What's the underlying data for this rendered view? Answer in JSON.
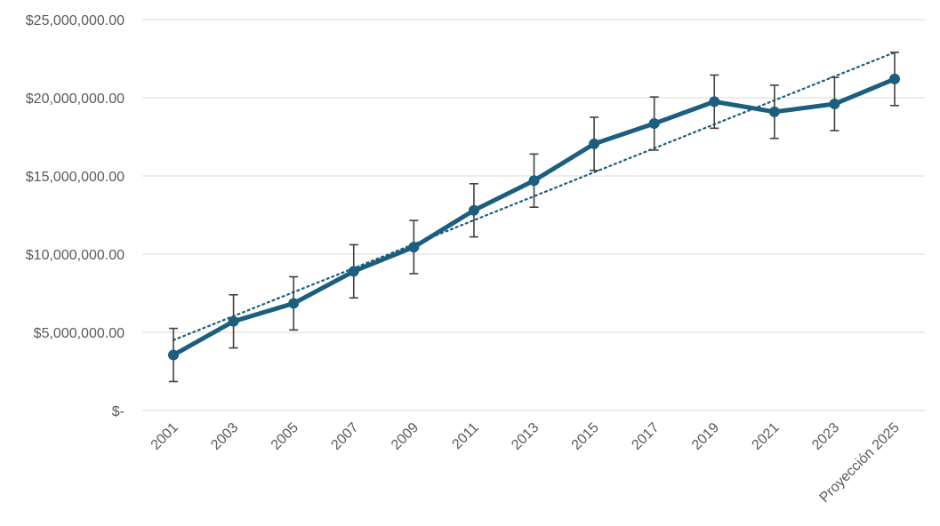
{
  "chart_data": {
    "type": "line",
    "title": "",
    "xlabel": "",
    "ylabel": "",
    "categories": [
      "2001",
      "2003",
      "2005",
      "2007",
      "2009",
      "2011",
      "2013",
      "2015",
      "2017",
      "2019",
      "2021",
      "2023",
      "Proyección 2025"
    ],
    "series": [
      {
        "values": [
          3550000,
          5700000,
          6850000,
          8900000,
          10450000,
          12800000,
          14700000,
          17050000,
          18350000,
          19750000,
          19100000,
          19600000,
          21200000
        ],
        "error": [
          1700000,
          1700000,
          1700000,
          1700000,
          1700000,
          1700000,
          1700000,
          1700000,
          1700000,
          1700000,
          1700000,
          1700000,
          1700000
        ],
        "color": "#1b5e7e"
      }
    ],
    "trendline": {
      "type": "linear",
      "start": 4500000,
      "end": 22900000,
      "color": "#1b5e7e",
      "style": "dotted"
    },
    "ylim": [
      0,
      25000000
    ],
    "yticks": [
      0,
      5000000,
      10000000,
      15000000,
      20000000,
      25000000
    ],
    "ytick_labels": [
      "$-",
      "$5,000,000.00",
      "$10,000,000.00",
      "$15,000,000.00",
      "$20,000,000.00",
      "$25,000,000.00"
    ],
    "grid": true,
    "legend": "none",
    "errorbar_color": "#404040"
  }
}
